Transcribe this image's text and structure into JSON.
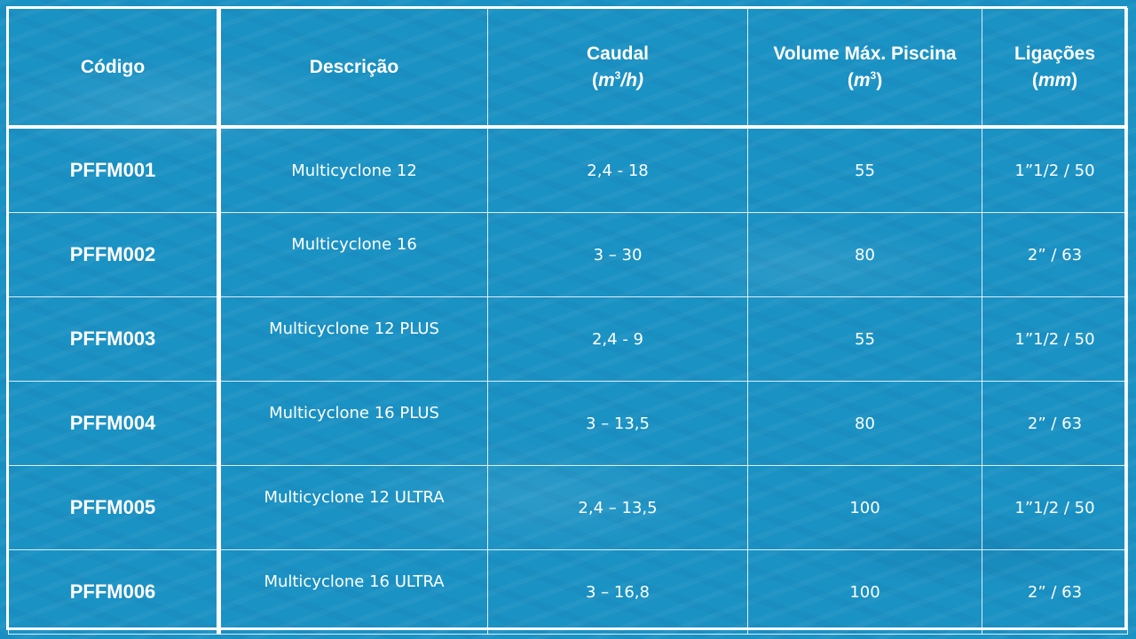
{
  "table": {
    "headers": [
      {
        "line1": "Código",
        "line2": "",
        "unit": "",
        "unit_sup": "",
        "unit_tail": ""
      },
      {
        "line1": "Descrição",
        "line2": "",
        "unit": "",
        "unit_sup": "",
        "unit_tail": ""
      },
      {
        "line1": "Caudal",
        "line2": "(",
        "unit": "m",
        "unit_sup": "3",
        "unit_tail": "/h)"
      },
      {
        "line1": "Volume Máx. Piscina",
        "line2": "(",
        "unit": "m",
        "unit_sup": "3",
        "unit_tail": ")"
      },
      {
        "line1": "Ligações",
        "line2": "(",
        "unit": "mm",
        "unit_sup": "",
        "unit_tail": ")"
      }
    ],
    "rows": [
      {
        "code": "PFFM001",
        "description": "Multicyclone 12",
        "flow": "2,4 - 18",
        "volume": "55",
        "connections": "1”1/2 / 50"
      },
      {
        "code": "PFFM002",
        "description": "Multicyclone 16",
        "flow": "3 – 30",
        "volume": "80",
        "connections": "2” / 63"
      },
      {
        "code": "PFFM003",
        "description": "Multicyclone 12 PLUS",
        "flow": "2,4 - 9",
        "volume": "55",
        "connections": "1”1/2 / 50"
      },
      {
        "code": "PFFM004",
        "description": "Multicyclone 16 PLUS",
        "flow": "3 – 13,5",
        "volume": "80",
        "connections": "2” / 63"
      },
      {
        "code": "PFFM005",
        "description": "Multicyclone 12 ULTRA",
        "flow": "2,4 – 13,5",
        "volume": "100",
        "connections": "1”1/2 / 50"
      },
      {
        "code": "PFFM006",
        "description": "Multicyclone 16 ULTRA",
        "flow": "3 – 16,8",
        "volume": "100",
        "connections": "2” / 63"
      }
    ]
  },
  "colors": {
    "background": "#1b92c4",
    "text": "#ffffff",
    "grid": "#ffffff"
  }
}
